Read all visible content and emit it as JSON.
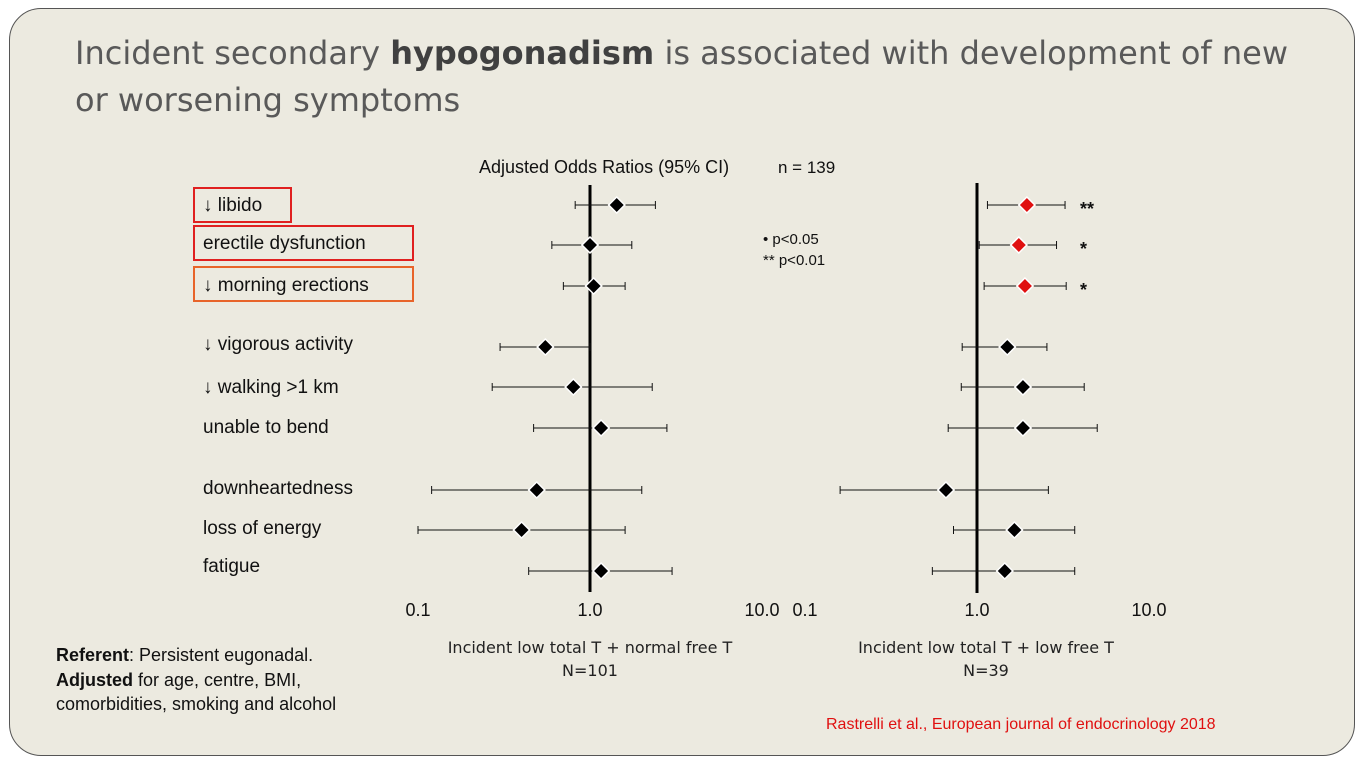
{
  "title": {
    "part1": "Incident secondary ",
    "bold": "hypogonadism",
    "part2": " is associated with development of new or worsening symptoms"
  },
  "header": {
    "chart_title": "Adjusted Odds Ratios (95% CI)",
    "n_total": "n = 139"
  },
  "significance_legend": {
    "line1": "•  p<0.05",
    "line2": "** p<0.01"
  },
  "footnote": {
    "referent_bold": "Referent",
    "referent_text": ": Persistent eugonadal.",
    "adjusted_bold": "Adjusted",
    "adjusted_text": " for age, centre, BMI,",
    "adjusted_text2": "comorbidities, smoking and alcohol"
  },
  "citation": "Rastrelli et al., European journal of endocrinology 2018",
  "colors": {
    "marker": "#000000",
    "significant_marker": "#e01010",
    "box_red": "#e02020",
    "box_orange": "#e8642a"
  },
  "chart_data": [
    {
      "type": "forest",
      "xscale": "log",
      "xlim": [
        0.1,
        10.0
      ],
      "xticks": [
        "0.1",
        "1.0",
        "10.0"
      ],
      "reference_line": 1.0,
      "xlabel": "Incident low total T + normal free T",
      "xlabel2": "N=101",
      "categories": [
        "↓ libido",
        "erectile dysfunction",
        "↓ morning erections",
        "↓ vigorous activity",
        "↓ walking >1 km",
        "unable to bend",
        "downheartedness",
        "loss of energy",
        "fatigue"
      ],
      "estimates": [
        1.43,
        1.0,
        1.05,
        0.55,
        0.8,
        1.16,
        0.49,
        0.4,
        1.16
      ],
      "ci_low": [
        0.82,
        0.6,
        0.7,
        0.3,
        0.27,
        0.47,
        0.12,
        0.1,
        0.44
      ],
      "ci_high": [
        2.4,
        1.75,
        1.6,
        1.0,
        2.3,
        2.8,
        2.0,
        1.6,
        3.0
      ],
      "significance": [
        "",
        "",
        "",
        "",
        "",
        "",
        "",
        "",
        ""
      ]
    },
    {
      "type": "forest",
      "xscale": "log",
      "xlim": [
        0.1,
        10.0
      ],
      "xticks": [
        "0.1",
        "1.0",
        "10.0"
      ],
      "reference_line": 1.0,
      "xlabel": "Incident low total T + low free T",
      "xlabel2": "N=39",
      "categories": [
        "↓ libido",
        "erectile dysfunction",
        "↓ morning erections",
        "↓ vigorous activity",
        "↓ walking >1 km",
        "unable to bend",
        "downheartedness",
        "loss of energy",
        "fatigue"
      ],
      "estimates": [
        1.95,
        1.75,
        1.9,
        1.5,
        1.85,
        1.85,
        0.66,
        1.65,
        1.45
      ],
      "ci_low": [
        1.15,
        1.03,
        1.1,
        0.82,
        0.81,
        0.68,
        0.16,
        0.73,
        0.55
      ],
      "ci_high": [
        3.25,
        2.9,
        3.3,
        2.55,
        4.2,
        5.0,
        2.6,
        3.7,
        3.7
      ],
      "significance": [
        "**",
        "*",
        "*",
        "",
        "",
        "",
        "",
        "",
        ""
      ]
    }
  ]
}
